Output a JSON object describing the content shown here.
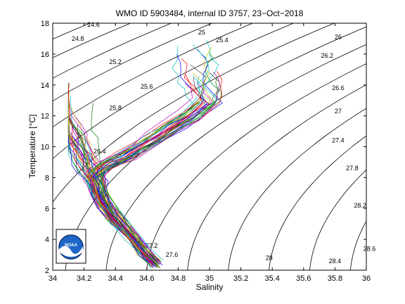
{
  "chart_data": {
    "type": "line",
    "title": "WMO ID 5903484, internal ID 3757, 23−Oct−2018",
    "xlabel": "Salinity",
    "ylabel": "Temperature [°C]",
    "xlim": [
      34,
      36
    ],
    "ylim": [
      2,
      18
    ],
    "xticks": [
      "34",
      "34.2",
      "34.4",
      "34.6",
      "34.8",
      "35",
      "35.2",
      "35.4",
      "35.6",
      "35.8",
      "36"
    ],
    "yticks": [
      "2",
      "4",
      "6",
      "8",
      "10",
      "12",
      "14",
      "16",
      "18"
    ],
    "grid": false,
    "legend": "none",
    "density_isolines": {
      "sigma_values": [
        24.6,
        24.8,
        25,
        25.2,
        25.4,
        25.6,
        25.8,
        26,
        26.2,
        26.4,
        26.6,
        26.8,
        27,
        27.2,
        27.4,
        27.6,
        27.8,
        28,
        28.2,
        28.4,
        28.6
      ],
      "labels": [
        {
          "text": "24.6",
          "s": 34.26,
          "t": 17.9
        },
        {
          "text": "24.8",
          "s": 34.16,
          "t": 17.0
        },
        {
          "text": "25",
          "s": 34.95,
          "t": 17.4
        },
        {
          "text": "25.4",
          "s": 35.08,
          "t": 16.9
        },
        {
          "text": "26",
          "s": 35.82,
          "t": 17.1
        },
        {
          "text": "25.2",
          "s": 34.4,
          "t": 15.5
        },
        {
          "text": "26.2",
          "s": 35.75,
          "t": 15.9
        },
        {
          "text": "26.6",
          "s": 35.82,
          "t": 13.8
        },
        {
          "text": "25.6",
          "s": 34.6,
          "t": 13.9
        },
        {
          "text": "25.8",
          "s": 34.4,
          "t": 12.5
        },
        {
          "text": "27",
          "s": 35.82,
          "t": 12.3
        },
        {
          "text": "27.4",
          "s": 35.82,
          "t": 10.4
        },
        {
          "text": "26.4",
          "s": 34.3,
          "t": 9.7
        },
        {
          "text": "27.8",
          "s": 35.91,
          "t": 8.6
        },
        {
          "text": "26.8",
          "s": 34.3,
          "t": 6.7
        },
        {
          "text": "28.2",
          "s": 35.96,
          "t": 6.2
        },
        {
          "text": "27.2",
          "s": 34.63,
          "t": 3.6
        },
        {
          "text": "27.6",
          "s": 34.76,
          "t": 3.0
        },
        {
          "text": "28",
          "s": 35.38,
          "t": 2.8
        },
        {
          "text": "28.4",
          "s": 35.8,
          "t": 2.6
        },
        {
          "text": "28.6",
          "s": 36.02,
          "t": 3.4
        }
      ]
    },
    "series_style": {
      "colors": [
        "#0000ff",
        "#008000",
        "#ff0000",
        "#00bfbf",
        "#bf00bf",
        "#bfbf00",
        "#404040"
      ],
      "profile_count": 70
    },
    "reference_profile": {
      "salinity": [
        34.66,
        34.58,
        34.5,
        34.4,
        34.34,
        34.3,
        34.28,
        34.26,
        34.34,
        34.46,
        34.56,
        34.66,
        34.76,
        34.88,
        34.98
      ],
      "temperature": [
        2.4,
        3.2,
        4.2,
        5.3,
        6.2,
        7.0,
        7.7,
        8.1,
        8.8,
        9.4,
        10.0,
        10.6,
        11.3,
        12.0,
        12.9
      ]
    },
    "left_branch": {
      "salinity_range": [
        34.1,
        34.35
      ],
      "temperature_range": [
        8.0,
        14.2
      ]
    },
    "right_branch": {
      "salinity_range": [
        34.6,
        35.08
      ],
      "temperature_range": [
        11.0,
        16.8
      ]
    }
  },
  "logo": {
    "name": "noaa-logo",
    "text": "NOAA"
  }
}
